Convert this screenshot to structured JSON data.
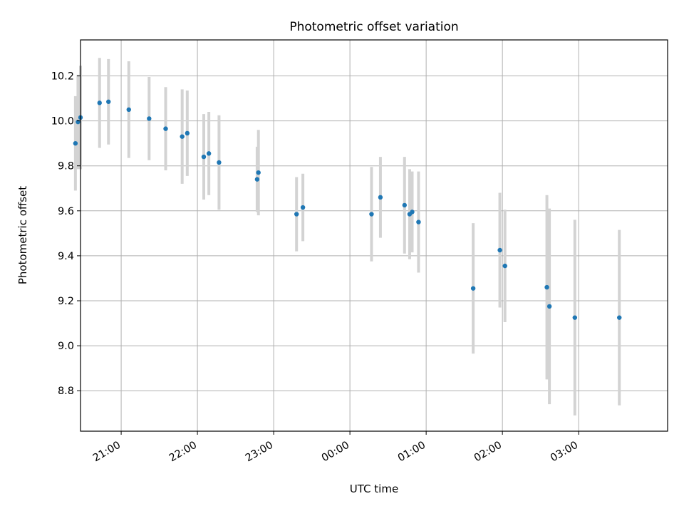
{
  "chart_data": {
    "type": "scatter",
    "title": "Photometric offset variation",
    "xlabel": "UTC time",
    "ylabel": "Photometric offset",
    "x_is_time": true,
    "xlim": [
      "20:28",
      "04:10"
    ],
    "ylim": [
      8.62,
      10.36
    ],
    "x_ticks": [
      "21:00",
      "22:00",
      "23:00",
      "00:00",
      "01:00",
      "02:00",
      "03:00"
    ],
    "y_ticks": [
      8.8,
      9.0,
      9.2,
      9.4,
      9.6,
      9.8,
      10.0,
      10.2
    ],
    "grid": true,
    "point_color": "#1f77b4",
    "errorbar_color": "#d3d3d3",
    "points": [
      {
        "x": "20:24",
        "y": 9.9,
        "err": 0.21
      },
      {
        "x": "20:26",
        "y": 9.995,
        "err": 0.21
      },
      {
        "x": "20:28",
        "y": 10.015,
        "err": 0.23
      },
      {
        "x": "20:43",
        "y": 10.08,
        "err": 0.2
      },
      {
        "x": "20:50",
        "y": 10.085,
        "err": 0.19
      },
      {
        "x": "21:06",
        "y": 10.05,
        "err": 0.215
      },
      {
        "x": "21:22",
        "y": 10.01,
        "err": 0.185
      },
      {
        "x": "21:35",
        "y": 9.965,
        "err": 0.185
      },
      {
        "x": "21:48",
        "y": 9.93,
        "err": 0.21
      },
      {
        "x": "21:52",
        "y": 9.945,
        "err": 0.19
      },
      {
        "x": "22:05",
        "y": 9.84,
        "err": 0.19
      },
      {
        "x": "22:09",
        "y": 9.855,
        "err": 0.185
      },
      {
        "x": "22:17",
        "y": 9.815,
        "err": 0.21
      },
      {
        "x": "22:47",
        "y": 9.74,
        "err": 0.145
      },
      {
        "x": "22:48",
        "y": 9.77,
        "err": 0.19
      },
      {
        "x": "23:18",
        "y": 9.585,
        "err": 0.165
      },
      {
        "x": "23:23",
        "y": 9.615,
        "err": 0.15
      },
      {
        "x": "00:17",
        "y": 9.585,
        "err": 0.21
      },
      {
        "x": "00:24",
        "y": 9.66,
        "err": 0.18
      },
      {
        "x": "00:43",
        "y": 9.625,
        "err": 0.215
      },
      {
        "x": "00:47",
        "y": 9.585,
        "err": 0.2
      },
      {
        "x": "00:49",
        "y": 9.595,
        "err": 0.18
      },
      {
        "x": "00:54",
        "y": 9.55,
        "err": 0.225
      },
      {
        "x": "01:37",
        "y": 9.255,
        "err": 0.29
      },
      {
        "x": "01:58",
        "y": 9.425,
        "err": 0.255
      },
      {
        "x": "02:02",
        "y": 9.355,
        "err": 0.25
      },
      {
        "x": "02:35",
        "y": 9.26,
        "err": 0.41
      },
      {
        "x": "02:37",
        "y": 9.175,
        "err": 0.435
      },
      {
        "x": "02:57",
        "y": 9.125,
        "err": 0.435
      },
      {
        "x": "03:32",
        "y": 9.125,
        "err": 0.39
      }
    ]
  }
}
